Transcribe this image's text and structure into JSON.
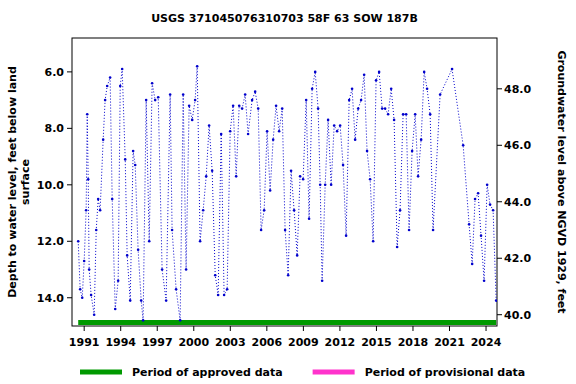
{
  "chart_data": {
    "type": "line",
    "title": "USGS 371045076310703 58F 63 SOW 187B",
    "y_label": "Depth to water level, feet below land surface",
    "y2_label": "Groundwater level above NGVD 1929, feet",
    "x": [
      1990.51,
      1990.67,
      1990.84,
      1991.0,
      1991.16,
      1991.25,
      1991.33,
      1991.41,
      1991.57,
      1991.82,
      1991.99,
      1992.15,
      1992.31,
      1992.56,
      1992.72,
      1992.89,
      1993.13,
      1993.3,
      1993.55,
      1993.79,
      1993.96,
      1994.12,
      1994.37,
      1994.53,
      1994.78,
      1995.02,
      1995.19,
      1995.43,
      1995.68,
      1995.84,
      1996.09,
      1996.34,
      1996.58,
      1996.83,
      1997.08,
      1997.4,
      1997.73,
      1998.06,
      1998.22,
      1998.55,
      1998.88,
      1999.13,
      1999.37,
      1999.62,
      1999.87,
      2000.11,
      2000.28,
      2000.52,
      2000.77,
      2001.02,
      2001.26,
      2001.51,
      2001.76,
      2002.0,
      2002.25,
      2002.49,
      2002.74,
      2002.99,
      2003.23,
      2003.48,
      2003.73,
      2003.97,
      2004.22,
      2004.46,
      2004.79,
      2005.04,
      2005.29,
      2005.53,
      2005.78,
      2006.02,
      2006.27,
      2006.52,
      2006.76,
      2007.01,
      2007.26,
      2007.5,
      2007.75,
      2007.99,
      2008.24,
      2008.49,
      2008.73,
      2008.98,
      2009.23,
      2009.47,
      2009.72,
      2009.97,
      2010.21,
      2010.38,
      2010.54,
      2010.79,
      2011.03,
      2011.28,
      2011.53,
      2011.77,
      2012.02,
      2012.26,
      2012.51,
      2012.76,
      2013.0,
      2013.25,
      2013.5,
      2013.74,
      2013.99,
      2014.23,
      2014.48,
      2014.73,
      2014.97,
      2015.22,
      2015.47,
      2015.71,
      2015.96,
      2016.21,
      2016.45,
      2016.7,
      2016.94,
      2017.19,
      2017.44,
      2017.68,
      2017.93,
      2018.18,
      2018.42,
      2018.67,
      2018.92,
      2019.16,
      2019.41,
      2019.65,
      2020.23,
      2021.21,
      2022.12,
      2022.61,
      2022.86,
      2023.1,
      2023.35,
      2023.59,
      2023.84,
      2024.09,
      2024.33,
      2024.58,
      2024.83
    ],
    "series": [
      {
        "color": "#0000cc",
        "marker": "circle",
        "line_style": "dotted",
        "values": [
          12.0,
          13.7,
          14.0,
          12.7,
          10.9,
          7.5,
          9.8,
          13.0,
          13.9,
          14.6,
          11.6,
          10.5,
          10.9,
          8.4,
          7.0,
          6.5,
          6.2,
          10.5,
          14.4,
          13.4,
          6.5,
          5.9,
          9.1,
          12.5,
          14.1,
          8.8,
          9.3,
          12.3,
          14.1,
          14.8,
          7.0,
          12.0,
          6.4,
          7.0,
          6.9,
          13.0,
          14.1,
          6.8,
          11.6,
          13.7,
          14.8,
          6.8,
          13.0,
          7.2,
          7.7,
          7.0,
          5.8,
          12.0,
          10.9,
          9.7,
          7.9,
          9.5,
          13.2,
          13.9,
          8.2,
          13.9,
          13.7,
          8.1,
          7.2,
          9.7,
          7.2,
          7.3,
          6.8,
          8.2,
          7.0,
          6.7,
          7.3,
          11.6,
          10.9,
          8.1,
          10.2,
          8.4,
          7.2,
          8.1,
          7.3,
          11.6,
          13.2,
          9.5,
          10.9,
          12.5,
          9.7,
          9.8,
          7.0,
          11.2,
          6.6,
          6.0,
          7.3,
          10.0,
          13.4,
          10.0,
          7.7,
          10.0,
          7.9,
          8.1,
          7.9,
          9.3,
          11.8,
          7.0,
          6.6,
          8.4,
          7.3,
          7.0,
          6.1,
          8.8,
          9.8,
          12.0,
          6.3,
          6.0,
          7.3,
          7.3,
          7.5,
          6.6,
          7.7,
          12.2,
          10.9,
          7.5,
          7.5,
          11.6,
          8.8,
          7.5,
          9.7,
          8.4,
          6.0,
          6.6,
          7.5,
          11.6,
          6.8,
          5.9,
          8.6,
          11.4,
          12.8,
          10.5,
          10.3,
          11.8,
          13.4,
          10.0,
          10.7,
          10.9,
          14.1
        ]
      }
    ],
    "xlim": [
      1990.0,
      2024.9
    ],
    "xticks": [
      1991,
      1994,
      1997,
      2000,
      2003,
      2006,
      2009,
      2012,
      2015,
      2018,
      2021,
      2024
    ],
    "ylim": [
      15.0,
      4.8
    ],
    "yticks": [
      {
        "value": 6,
        "label": "6.0"
      },
      {
        "value": 8,
        "label": "8.0"
      },
      {
        "value": 10,
        "label": "10.0"
      },
      {
        "value": 12,
        "label": "12.0"
      },
      {
        "value": 14,
        "label": "14.0"
      }
    ],
    "y2lim": [
      39.6,
      49.8
    ],
    "y2ticks": [
      {
        "value": 40,
        "label": "40.0"
      },
      {
        "value": 42,
        "label": "42.0"
      },
      {
        "value": 44,
        "label": "44.0"
      },
      {
        "value": 46,
        "label": "46.0"
      },
      {
        "value": 48,
        "label": "48.0"
      }
    ],
    "grid": false,
    "legend": "bottom",
    "periods": [
      {
        "name": "Period of approved data",
        "color": "#009900",
        "start": 1990.51,
        "end": 2024.83
      },
      {
        "name": "Period of provisional data",
        "color": "#ff33cc",
        "start": null,
        "end": null
      }
    ]
  }
}
